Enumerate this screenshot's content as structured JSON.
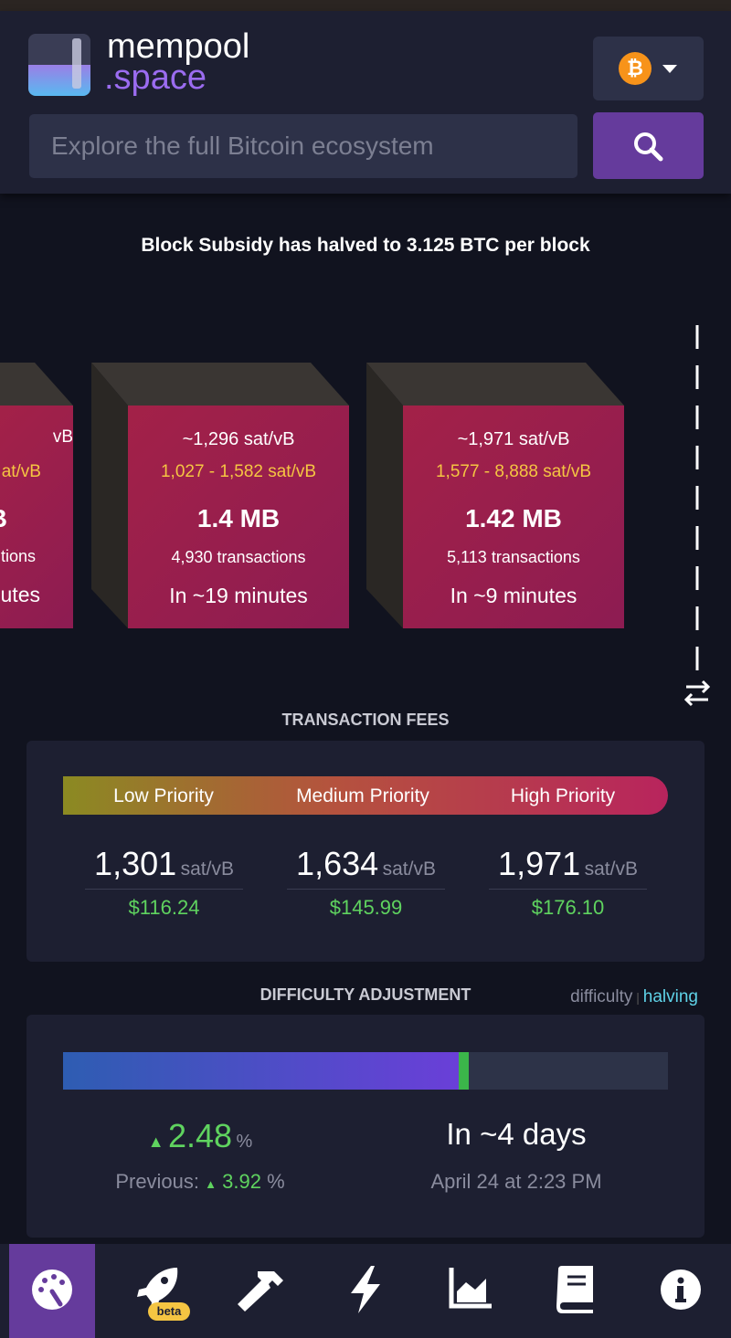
{
  "header": {
    "logo_main": "mempool",
    "logo_sub": ".space",
    "search_placeholder": "Explore the full Bitcoin ecosystem"
  },
  "banner": "Block Subsidy has halved to 3.125 BTC per block",
  "blocks": [
    {
      "median_fee": "vB",
      "fee_range": "at/vB",
      "size": "B",
      "tx_count": "tions",
      "eta": "utes"
    },
    {
      "median_fee": "~1,296 sat/vB",
      "fee_range": "1,027 - 1,582 sat/vB",
      "size": "1.4 MB",
      "tx_count": "4,930 transactions",
      "eta": "In ~19 minutes"
    },
    {
      "median_fee": "~1,971 sat/vB",
      "fee_range": "1,577 - 8,888 sat/vB",
      "size": "1.42 MB",
      "tx_count": "5,113 transactions",
      "eta": "In ~9 minutes"
    }
  ],
  "fees": {
    "title": "TRANSACTION FEES",
    "priorities": [
      {
        "label": "Low Priority",
        "rate": "1,301",
        "unit": "sat/vB",
        "usd": "$116.24"
      },
      {
        "label": "Medium Priority",
        "rate": "1,634",
        "unit": "sat/vB",
        "usd": "$145.99"
      },
      {
        "label": "High Priority",
        "rate": "1,971",
        "unit": "sat/vB",
        "usd": "$176.10"
      }
    ]
  },
  "difficulty": {
    "title": "DIFFICULTY ADJUSTMENT",
    "tabs": [
      "difficulty",
      "halving"
    ],
    "change": "2.48",
    "change_unit": "%",
    "previous_label": "Previous:",
    "previous": "3.92",
    "previous_unit": "%",
    "eta": "In ~4 days",
    "date": "April 24 at 2:23 PM"
  },
  "nav": {
    "badge": "beta"
  }
}
